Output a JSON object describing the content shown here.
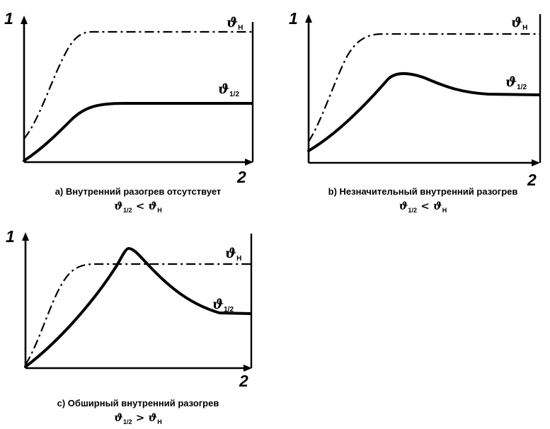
{
  "panels": [
    {
      "y_label": "1",
      "x_label": "2",
      "curve_top_symbol": "ϑ",
      "curve_top_sub": "Н",
      "curve_bottom_symbol": "ϑ",
      "curve_bottom_sub": "1/2",
      "caption_line1": "a) Внутренний разогрев отсутствует",
      "caption_sym1": "ϑ",
      "caption_sub1": "1/2",
      "caption_op": " < ",
      "caption_sym2": "ϑ",
      "caption_sub2": "Н"
    },
    {
      "y_label": "1",
      "x_label": "2",
      "curve_top_symbol": "ϑ",
      "curve_top_sub": "Н",
      "curve_bottom_symbol": "ϑ",
      "curve_bottom_sub": "1/2",
      "caption_line1": "b) Незначительный внутренний разогрев",
      "caption_sym1": "ϑ",
      "caption_sub1": "1/2",
      "caption_op": " < ",
      "caption_sym2": "ϑ",
      "caption_sub2": "Н"
    },
    {
      "y_label": "1",
      "x_label": "2",
      "curve_top_symbol": "ϑ",
      "curve_top_sub": "Н",
      "curve_bottom_symbol": "ϑ",
      "curve_bottom_sub": "1/2",
      "caption_line1": "c) Обширный внутренний разогрев",
      "caption_sym1": "ϑ",
      "caption_sub1": "1/2",
      "caption_op": " > ",
      "caption_sym2": "ϑ",
      "caption_sub2": "Н"
    }
  ]
}
